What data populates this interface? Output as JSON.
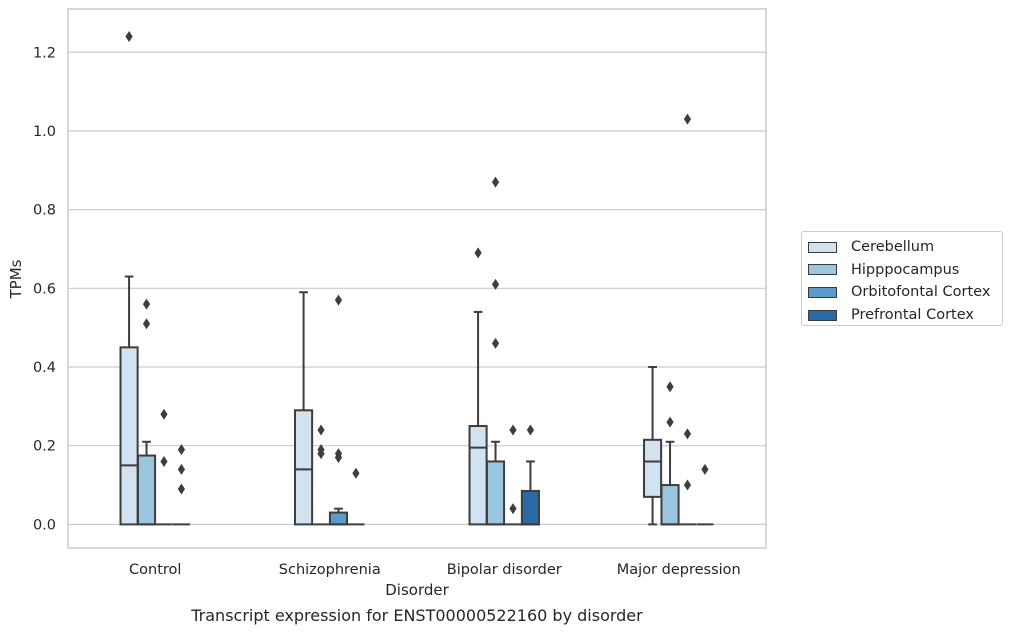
{
  "caption": "Transcript expression for ENST00000522160 by disorder",
  "chart_data": {
    "type": "boxplot",
    "xlabel": "Disorder",
    "ylabel": "TPMs",
    "ylim": [
      -0.06,
      1.31
    ],
    "yticks": [
      0.0,
      0.2,
      0.4,
      0.6,
      0.8,
      1.0,
      1.2
    ],
    "ytick_labels": [
      "0.0",
      "0.2",
      "0.4",
      "0.6",
      "0.8",
      "1.0",
      "1.2"
    ],
    "grid": "horizontal",
    "legend_position": "right",
    "categories": [
      "Control",
      "Schizophrenia",
      "Bipolar disorder",
      "Major depression"
    ],
    "series": [
      {
        "name": "Cerebellum",
        "color": "#d1e2f1",
        "boxes": [
          {
            "q1": 0.0,
            "median": 0.15,
            "q3": 0.45,
            "whisker_low": 0.0,
            "whisker_high": 0.63,
            "outliers": [
              1.24
            ]
          },
          {
            "q1": 0.0,
            "median": 0.14,
            "q3": 0.29,
            "whisker_low": 0.0,
            "whisker_high": 0.59,
            "outliers": []
          },
          {
            "q1": 0.0,
            "median": 0.195,
            "q3": 0.25,
            "whisker_low": 0.0,
            "whisker_high": 0.54,
            "outliers": [
              0.69
            ]
          },
          {
            "q1": 0.07,
            "median": 0.16,
            "q3": 0.215,
            "whisker_low": 0.0,
            "whisker_high": 0.4,
            "outliers": []
          }
        ]
      },
      {
        "name": "Hipppocampus",
        "color": "#9ac6df",
        "boxes": [
          {
            "q1": 0.0,
            "median": 0.0,
            "q3": 0.175,
            "whisker_low": 0.0,
            "whisker_high": 0.21,
            "outliers": [
              0.51,
              0.56
            ]
          },
          {
            "q1": 0.0,
            "median": 0.0,
            "q3": 0.0,
            "whisker_low": 0.0,
            "whisker_high": 0.0,
            "outliers": [
              0.18,
              0.19,
              0.24
            ]
          },
          {
            "q1": 0.0,
            "median": 0.0,
            "q3": 0.16,
            "whisker_low": 0.0,
            "whisker_high": 0.21,
            "outliers": [
              0.46,
              0.61,
              0.87
            ]
          },
          {
            "q1": 0.0,
            "median": 0.0,
            "q3": 0.1,
            "whisker_low": 0.0,
            "whisker_high": 0.21,
            "outliers": [
              0.26,
              0.35
            ]
          }
        ]
      },
      {
        "name": "Orbitofontal Cortex",
        "color": "#5b9bc9",
        "boxes": [
          {
            "q1": 0.0,
            "median": 0.0,
            "q3": 0.0,
            "whisker_low": 0.0,
            "whisker_high": 0.0,
            "outliers": [
              0.16,
              0.28
            ]
          },
          {
            "q1": 0.0,
            "median": 0.0,
            "q3": 0.03,
            "whisker_low": 0.0,
            "whisker_high": 0.04,
            "outliers": [
              0.17,
              0.18,
              0.57
            ]
          },
          {
            "q1": 0.0,
            "median": 0.0,
            "q3": 0.0,
            "whisker_low": 0.0,
            "whisker_high": 0.0,
            "outliers": [
              0.04,
              0.24
            ]
          },
          {
            "q1": 0.0,
            "median": 0.0,
            "q3": 0.0,
            "whisker_low": 0.0,
            "whisker_high": 0.0,
            "outliers": [
              0.1,
              0.23,
              1.03
            ]
          }
        ]
      },
      {
        "name": "Prefrontal Cortex",
        "color": "#2a6aa7",
        "boxes": [
          {
            "q1": 0.0,
            "median": 0.0,
            "q3": 0.0,
            "whisker_low": 0.0,
            "whisker_high": 0.0,
            "outliers": [
              0.09,
              0.14,
              0.19
            ]
          },
          {
            "q1": 0.0,
            "median": 0.0,
            "q3": 0.0,
            "whisker_low": 0.0,
            "whisker_high": 0.0,
            "outliers": [
              0.13
            ]
          },
          {
            "q1": 0.0,
            "median": 0.0,
            "q3": 0.085,
            "whisker_low": 0.0,
            "whisker_high": 0.16,
            "outliers": [
              0.24
            ]
          },
          {
            "q1": 0.0,
            "median": 0.0,
            "q3": 0.0,
            "whisker_low": 0.0,
            "whisker_high": 0.0,
            "outliers": [
              0.14
            ]
          }
        ]
      }
    ]
  }
}
